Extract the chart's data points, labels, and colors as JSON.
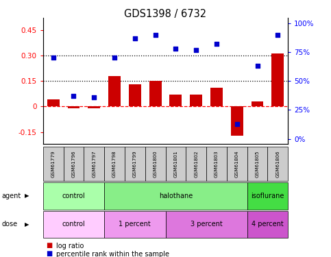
{
  "title": "GDS1398 / 6732",
  "samples": [
    "GSM61779",
    "GSM61796",
    "GSM61797",
    "GSM61798",
    "GSM61799",
    "GSM61800",
    "GSM61801",
    "GSM61802",
    "GSM61803",
    "GSM61804",
    "GSM61805",
    "GSM61806"
  ],
  "log_ratio": [
    0.04,
    -0.01,
    -0.01,
    0.18,
    0.13,
    0.15,
    0.07,
    0.07,
    0.11,
    -0.17,
    0.03,
    0.31
  ],
  "pct_rank": [
    0.7,
    0.37,
    0.36,
    0.7,
    0.87,
    0.9,
    0.78,
    0.77,
    0.82,
    0.13,
    0.63,
    0.9
  ],
  "ylim_left": [
    -0.22,
    0.52
  ],
  "ylim_right": [
    -0.044,
    1.044
  ],
  "yticks_left": [
    -0.15,
    0.0,
    0.15,
    0.3,
    0.45
  ],
  "ytick_labels_left": [
    "-0.15",
    "0",
    "0.15",
    "0.30",
    "0.45"
  ],
  "yticks_right": [
    0.0,
    0.25,
    0.5,
    0.75,
    1.0
  ],
  "ytick_labels_right": [
    "0%",
    "25%",
    "50%",
    "75%",
    "100%"
  ],
  "hlines": [
    0.15,
    0.3
  ],
  "bar_color": "#CC0000",
  "scatter_color": "#0000CC",
  "agent_groups": [
    {
      "label": "control",
      "start": 0,
      "end": 3,
      "color": "#AAFFAA"
    },
    {
      "label": "halothane",
      "start": 3,
      "end": 10,
      "color": "#88EE88"
    },
    {
      "label": "isoflurane",
      "start": 10,
      "end": 12,
      "color": "#44DD44"
    }
  ],
  "dose_groups": [
    {
      "label": "control",
      "start": 0,
      "end": 3,
      "color": "#FFCCFF"
    },
    {
      "label": "1 percent",
      "start": 3,
      "end": 6,
      "color": "#EE99EE"
    },
    {
      "label": "3 percent",
      "start": 6,
      "end": 10,
      "color": "#DD77DD"
    },
    {
      "label": "4 percent",
      "start": 10,
      "end": 12,
      "color": "#CC55CC"
    }
  ],
  "bar_width": 0.6,
  "sample_box_color": "#CCCCCC"
}
